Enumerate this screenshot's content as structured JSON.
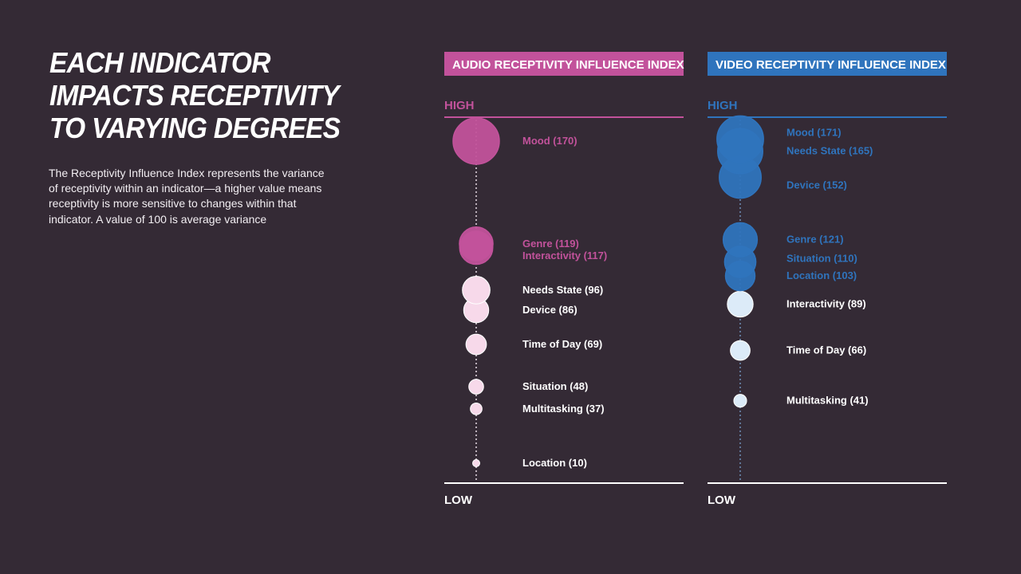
{
  "heading": {
    "title": "EACH INDICATOR IMPACTS RECEPTIVITY TO VARYING DEGREES",
    "description": "The Receptivity Influence Index represents the variance of receptivity within an indicator—a higher value means receptivity is more sensitive to changes within that indicator. A value of 100 is average variance"
  },
  "chart_data": [
    {
      "type": "scatter",
      "title": "AUDIO RECEPTIVITY INFLUENCE INDEX",
      "axis_top_label": "HIGH",
      "axis_bottom_label": "LOW",
      "accent_color": "#c2529b",
      "light_color": "#f7d9ea",
      "high_threshold": 100,
      "points": [
        {
          "name": "Mood",
          "value": 170,
          "label": "Mood (170)"
        },
        {
          "name": "Genre",
          "value": 119,
          "label": "Genre (119)"
        },
        {
          "name": "Interactivity",
          "value": 117,
          "label": "Interactivity (117)"
        },
        {
          "name": "Needs State",
          "value": 96,
          "label": "Needs State (96)"
        },
        {
          "name": "Device",
          "value": 86,
          "label": "Device (86)"
        },
        {
          "name": "Time of Day",
          "value": 69,
          "label": "Time of Day (69)"
        },
        {
          "name": "Situation",
          "value": 48,
          "label": "Situation (48)"
        },
        {
          "name": "Multitasking",
          "value": 37,
          "label": "Multitasking (37)"
        },
        {
          "name": "Location",
          "value": 10,
          "label": "Location (10)"
        }
      ]
    },
    {
      "type": "scatter",
      "title": "VIDEO RECEPTIVITY INFLUENCE INDEX",
      "axis_top_label": "HIGH",
      "axis_bottom_label": "LOW",
      "accent_color": "#2f74bd",
      "light_color": "#dcebf8",
      "high_threshold": 100,
      "points": [
        {
          "name": "Mood",
          "value": 171,
          "label": "Mood (171)"
        },
        {
          "name": "Needs State",
          "value": 165,
          "label": "Needs State (165)"
        },
        {
          "name": "Device",
          "value": 152,
          "label": "Device (152)"
        },
        {
          "name": "Genre",
          "value": 121,
          "label": "Genre (121)"
        },
        {
          "name": "Situation",
          "value": 110,
          "label": "Situation (110)"
        },
        {
          "name": "Location",
          "value": 103,
          "label": "Location (103)"
        },
        {
          "name": "Interactivity",
          "value": 89,
          "label": "Interactivity (89)"
        },
        {
          "name": "Time of Day",
          "value": 66,
          "label": "Time of Day (66)"
        },
        {
          "name": "Multitasking",
          "value": 41,
          "label": "Multitasking (41)"
        }
      ]
    }
  ]
}
